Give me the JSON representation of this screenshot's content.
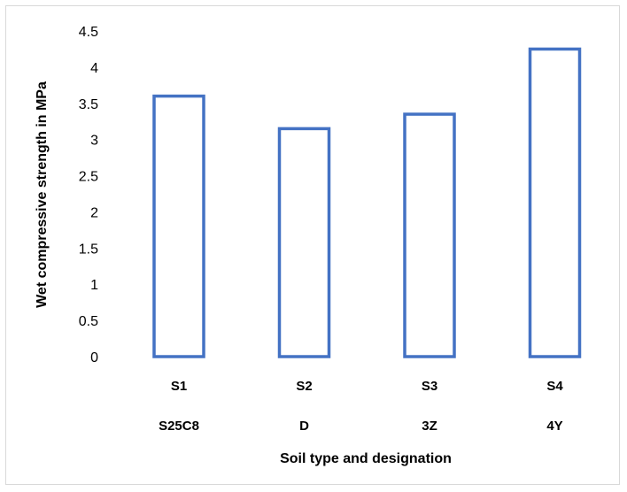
{
  "chart_data": {
    "type": "bar",
    "categories": [
      "S1",
      "S2",
      "S3",
      "S4"
    ],
    "designations": [
      "S25C8",
      "D",
      "3Z",
      "4Y"
    ],
    "values": [
      3.6,
      3.15,
      3.35,
      4.25
    ],
    "ylim": [
      0,
      4.5
    ],
    "yticks": [
      "0",
      "0.5",
      "1",
      "1.5",
      "2",
      "2.5",
      "3",
      "3.5",
      "4",
      "4.5"
    ],
    "xlabel": "Soil type and designation",
    "ylabel": "Wet compressive strength in MPa",
    "bar_outline_color": "#4472c4",
    "bar_fill_color": "#ffffff",
    "grid": false,
    "legend": "none"
  }
}
